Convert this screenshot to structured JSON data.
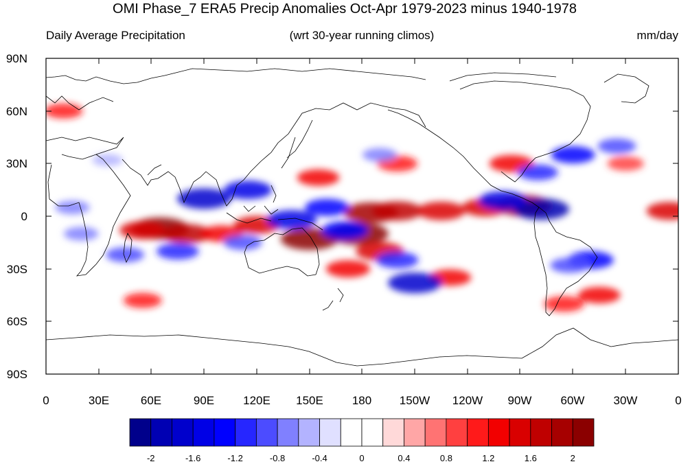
{
  "title": "OMI Phase_7 ERA5 Precip Anomalies Oct-Apr 1979-2023 minus 1940-1978",
  "subtitle_left": "Daily Average Precipitation",
  "subtitle_center": "(wrt 30-year running climos)",
  "subtitle_right": "mm/day",
  "lat_labels": [
    "90N",
    "60N",
    "30N",
    "0",
    "30S",
    "60S",
    "90S"
  ],
  "lon_labels": [
    "0",
    "30E",
    "60E",
    "90E",
    "120E",
    "150E",
    "180",
    "150W",
    "120W",
    "90W",
    "60W",
    "30W",
    "0"
  ],
  "colorbar": {
    "colors": [
      "#00008b",
      "#0000b3",
      "#0000cc",
      "#0000e6",
      "#0000ff",
      "#2626ff",
      "#4c4cff",
      "#8080ff",
      "#b3b3ff",
      "#e0e0ff",
      "#ffffff",
      "#ffffff",
      "#ffd9d9",
      "#ffa6a6",
      "#ff7373",
      "#ff4040",
      "#ff1a1a",
      "#f20000",
      "#d90000",
      "#bf0000",
      "#a60000",
      "#8b0000"
    ],
    "tick_labels": [
      "-2",
      "-1.6",
      "-1.2",
      "-0.8",
      "-0.4",
      "0",
      "0.4",
      "0.8",
      "1.2",
      "1.6",
      "2"
    ]
  },
  "map_data": {
    "projection": "equirectangular",
    "lon_range": [
      0,
      360
    ],
    "lat_range": [
      -90,
      90
    ],
    "anomalies": [
      {
        "lon": 185,
        "lat": 2,
        "value": 1.8
      },
      {
        "lon": 200,
        "lat": 3,
        "value": 1.6
      },
      {
        "lon": 225,
        "lat": 3,
        "value": 1.5
      },
      {
        "lon": 250,
        "lat": 5,
        "value": 1.4
      },
      {
        "lon": 272,
        "lat": 6,
        "value": 1.9
      },
      {
        "lon": 282,
        "lat": 4,
        "value": -1.9
      },
      {
        "lon": 260,
        "lat": 9,
        "value": -1.5
      },
      {
        "lon": 65,
        "lat": -7,
        "value": 2.0
      },
      {
        "lon": 55,
        "lat": -8,
        "value": 1.4
      },
      {
        "lon": 80,
        "lat": -10,
        "value": 1.6
      },
      {
        "lon": 100,
        "lat": -10,
        "value": 1.2
      },
      {
        "lon": 150,
        "lat": -13,
        "value": 2.0
      },
      {
        "lon": 178,
        "lat": -10,
        "value": 2.1
      },
      {
        "lon": 190,
        "lat": -20,
        "value": 1.5
      },
      {
        "lon": 172,
        "lat": -30,
        "value": 1.3
      },
      {
        "lon": 120,
        "lat": -5,
        "value": 1.4
      },
      {
        "lon": 155,
        "lat": 22,
        "value": 1.2
      },
      {
        "lon": 200,
        "lat": 30,
        "value": 1.1
      },
      {
        "lon": 265,
        "lat": 30,
        "value": 1.3
      },
      {
        "lon": 230,
        "lat": -35,
        "value": 1.2
      },
      {
        "lon": 315,
        "lat": -45,
        "value": 1.2
      },
      {
        "lon": 55,
        "lat": -48,
        "value": 1.0
      },
      {
        "lon": 295,
        "lat": -50,
        "value": 1.1
      },
      {
        "lon": 355,
        "lat": 3,
        "value": 1.4
      },
      {
        "lon": 10,
        "lat": 60,
        "value": 1.0
      },
      {
        "lon": 330,
        "lat": 30,
        "value": 0.9
      },
      {
        "lon": 90,
        "lat": 10,
        "value": -1.8
      },
      {
        "lon": 115,
        "lat": 15,
        "value": -1.5
      },
      {
        "lon": 140,
        "lat": -2,
        "value": -1.6
      },
      {
        "lon": 160,
        "lat": 5,
        "value": -1.3
      },
      {
        "lon": 170,
        "lat": -8,
        "value": -1.4
      },
      {
        "lon": 210,
        "lat": -38,
        "value": -1.8
      },
      {
        "lon": 200,
        "lat": -25,
        "value": -1.2
      },
      {
        "lon": 112,
        "lat": -15,
        "value": -1.0
      },
      {
        "lon": 75,
        "lat": -20,
        "value": -1.2
      },
      {
        "lon": 45,
        "lat": -22,
        "value": -1.0
      },
      {
        "lon": 15,
        "lat": 5,
        "value": -0.8
      },
      {
        "lon": 20,
        "lat": -10,
        "value": -0.8
      },
      {
        "lon": 310,
        "lat": -25,
        "value": -1.4
      },
      {
        "lon": 298,
        "lat": -28,
        "value": -1.0
      },
      {
        "lon": 300,
        "lat": 35,
        "value": -1.3
      },
      {
        "lon": 280,
        "lat": 25,
        "value": -1.1
      },
      {
        "lon": 325,
        "lat": 40,
        "value": -1.0
      },
      {
        "lon": 190,
        "lat": 35,
        "value": -0.8
      },
      {
        "lon": 35,
        "lat": 32,
        "value": -0.6
      }
    ]
  }
}
